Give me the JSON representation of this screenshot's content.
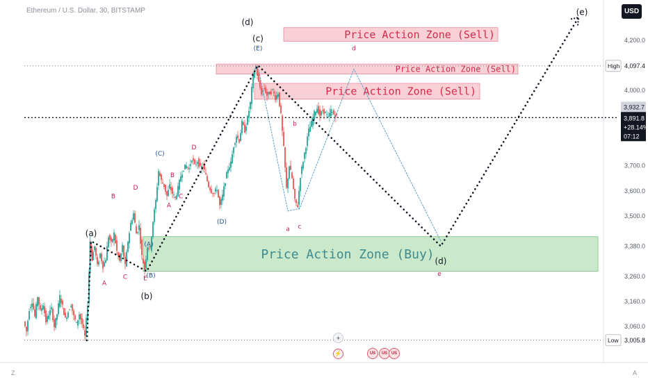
{
  "header": {
    "title": "Ethereum / U.S. Dollar, 30, BITSTAMP",
    "currency_button": "USD"
  },
  "footer": {
    "left_label": "Z",
    "right_label": "A"
  },
  "colors": {
    "bull": "#26a69a",
    "bear": "#ef5350",
    "sell_zone": "#f7bcc4",
    "buy_zone": "#a6d9a6",
    "axis_text": "#555b66",
    "wave_label_dark": "#131722",
    "wave_label_red": "#c2185b",
    "wave_label_blue": "#1e4e8c"
  },
  "chart_data": {
    "type": "candlestick",
    "ylim": [
      2950,
      4310
    ],
    "y_ticks": [
      "4,200.0",
      "4,000.0",
      "3,700.0",
      "3,600.0",
      "3,500.0",
      "3,380.0",
      "3,260.0",
      "3,160.0",
      "3,060.0"
    ],
    "y_tick_values": [
      4200,
      4000,
      3700,
      3600,
      3500,
      3380,
      3260,
      3160,
      3060
    ],
    "high": {
      "label": "High",
      "value": "4,097.4",
      "price": 4097.4
    },
    "low": {
      "label": "Low",
      "value": "3,005.8",
      "price": 3005.8
    },
    "last_price": {
      "value": "3,932.7",
      "price": 3932.7
    },
    "current_price": {
      "value": "3,891.8",
      "change": "+28.14%",
      "countdown": "07:12",
      "price": 3891.8
    },
    "zones": [
      {
        "label": "Price Action Zone (Sell)",
        "top": 4250,
        "bottom": 4195
      },
      {
        "label": "Price Action Zone (Sell)",
        "top": 4105,
        "bottom": 4065
      },
      {
        "label": "Price Action Zone (Sell)",
        "top": 4028,
        "bottom": 3965
      },
      {
        "label": "Price Action Zone (Buy)",
        "top": 3418,
        "bottom": 3280
      }
    ],
    "wave_labels": [
      {
        "text": "(d)",
        "x": 356,
        "price": 4260,
        "color": "dark"
      },
      {
        "text": "(c)",
        "x": 371,
        "price": 4195,
        "color": "dark"
      },
      {
        "text": "(E)",
        "x": 371,
        "price": 4160,
        "color": "blue"
      },
      {
        "text": "(e)",
        "x": 837,
        "price": 4300,
        "color": "dark"
      },
      {
        "text": "d",
        "x": 509,
        "price": 4160,
        "color": "red"
      },
      {
        "text": "(a)",
        "x": 131,
        "price": 3420,
        "color": "dark"
      },
      {
        "text": "(b)",
        "x": 211,
        "price": 3170,
        "color": "dark"
      },
      {
        "text": "(B)",
        "x": 217,
        "price": 3255,
        "color": "blue"
      },
      {
        "text": "E",
        "x": 209,
        "price": 3245,
        "color": "red"
      },
      {
        "text": "A",
        "x": 150,
        "price": 3225,
        "color": "red"
      },
      {
        "text": "B",
        "x": 163,
        "price": 3570,
        "color": "red"
      },
      {
        "text": "C",
        "x": 180,
        "price": 3250,
        "color": "red"
      },
      {
        "text": "D",
        "x": 195,
        "price": 3605,
        "color": "red"
      },
      {
        "text": "(A)",
        "x": 214,
        "price": 3380,
        "color": "blue"
      },
      {
        "text": "(C)",
        "x": 230,
        "price": 3740,
        "color": "blue"
      },
      {
        "text": "D",
        "x": 279,
        "price": 3765,
        "color": "red"
      },
      {
        "text": "A",
        "x": 243,
        "price": 3535,
        "color": "red"
      },
      {
        "text": "B",
        "x": 248,
        "price": 3655,
        "color": "red"
      },
      {
        "text": "C",
        "x": 260,
        "price": 3570,
        "color": "red"
      },
      {
        "text": "(D)",
        "x": 319,
        "price": 3470,
        "color": "blue"
      },
      {
        "text": "b",
        "x": 424,
        "price": 3860,
        "color": "red"
      },
      {
        "text": "a",
        "x": 414,
        "price": 3440,
        "color": "red"
      },
      {
        "text": "c",
        "x": 431,
        "price": 3450,
        "color": "red"
      },
      {
        "text": "(d)",
        "x": 634,
        "price": 3310,
        "color": "dark"
      },
      {
        "text": "e",
        "x": 632,
        "price": 3262,
        "color": "red"
      }
    ],
    "projections": [
      {
        "style": "dotted-black",
        "points": [
          [
            125,
            3005
          ],
          [
            131,
            3400
          ],
          [
            211,
            3280
          ],
          [
            371,
            4100
          ],
          [
            634,
            3380
          ],
          [
            832,
            4290
          ]
        ]
      },
      {
        "style": "dotted-blue",
        "points": [
          [
            371,
            4095
          ],
          [
            414,
            3520
          ],
          [
            431,
            3530
          ],
          [
            509,
            4085
          ],
          [
            634,
            3400
          ]
        ]
      }
    ],
    "price_path": [
      [
        36,
        3080
      ],
      [
        40,
        3040
      ],
      [
        44,
        3130
      ],
      [
        48,
        3160
      ],
      [
        52,
        3100
      ],
      [
        56,
        3180
      ],
      [
        60,
        3120
      ],
      [
        64,
        3150
      ],
      [
        68,
        3080
      ],
      [
        72,
        3110
      ],
      [
        76,
        3130
      ],
      [
        80,
        3060
      ],
      [
        84,
        3110
      ],
      [
        88,
        3180
      ],
      [
        92,
        3140
      ],
      [
        96,
        3090
      ],
      [
        100,
        3120
      ],
      [
        104,
        3150
      ],
      [
        108,
        3100
      ],
      [
        112,
        3070
      ],
      [
        116,
        3110
      ],
      [
        120,
        3070
      ],
      [
        124,
        3020
      ],
      [
        128,
        3150
      ],
      [
        131,
        3400
      ],
      [
        134,
        3330
      ],
      [
        138,
        3380
      ],
      [
        142,
        3300
      ],
      [
        146,
        3350
      ],
      [
        150,
        3300
      ],
      [
        154,
        3330
      ],
      [
        158,
        3420
      ],
      [
        162,
        3390
      ],
      [
        166,
        3430
      ],
      [
        170,
        3360
      ],
      [
        174,
        3320
      ],
      [
        178,
        3380
      ],
      [
        182,
        3300
      ],
      [
        186,
        3400
      ],
      [
        190,
        3470
      ],
      [
        194,
        3510
      ],
      [
        198,
        3430
      ],
      [
        202,
        3460
      ],
      [
        206,
        3340
      ],
      [
        210,
        3290
      ],
      [
        214,
        3380
      ],
      [
        218,
        3370
      ],
      [
        222,
        3480
      ],
      [
        226,
        3560
      ],
      [
        230,
        3680
      ],
      [
        234,
        3640
      ],
      [
        238,
        3620
      ],
      [
        242,
        3580
      ],
      [
        246,
        3620
      ],
      [
        250,
        3590
      ],
      [
        254,
        3570
      ],
      [
        258,
        3610
      ],
      [
        262,
        3660
      ],
      [
        266,
        3690
      ],
      [
        270,
        3700
      ],
      [
        274,
        3690
      ],
      [
        278,
        3730
      ],
      [
        282,
        3700
      ],
      [
        286,
        3720
      ],
      [
        290,
        3690
      ],
      [
        294,
        3700
      ],
      [
        298,
        3660
      ],
      [
        302,
        3620
      ],
      [
        306,
        3600
      ],
      [
        310,
        3590
      ],
      [
        314,
        3610
      ],
      [
        318,
        3540
      ],
      [
        322,
        3580
      ],
      [
        326,
        3640
      ],
      [
        330,
        3690
      ],
      [
        334,
        3710
      ],
      [
        338,
        3780
      ],
      [
        342,
        3820
      ],
      [
        346,
        3800
      ],
      [
        350,
        3870
      ],
      [
        354,
        3840
      ],
      [
        358,
        3890
      ],
      [
        362,
        3950
      ],
      [
        366,
        4060
      ],
      [
        370,
        4095
      ],
      [
        374,
        4030
      ],
      [
        378,
        3990
      ],
      [
        382,
        4010
      ],
      [
        386,
        3980
      ],
      [
        390,
        3990
      ],
      [
        394,
        4000
      ],
      [
        398,
        3970
      ],
      [
        402,
        3990
      ],
      [
        406,
        3900
      ],
      [
        410,
        3770
      ],
      [
        414,
        3610
      ],
      [
        418,
        3700
      ],
      [
        422,
        3650
      ],
      [
        426,
        3560
      ],
      [
        430,
        3540
      ],
      [
        434,
        3660
      ],
      [
        438,
        3720
      ],
      [
        442,
        3780
      ],
      [
        446,
        3840
      ],
      [
        450,
        3870
      ],
      [
        454,
        3910
      ],
      [
        458,
        3930
      ],
      [
        462,
        3900
      ],
      [
        466,
        3920
      ],
      [
        470,
        3910
      ],
      [
        474,
        3890
      ],
      [
        478,
        3920
      ],
      [
        482,
        3905
      ],
      [
        486,
        3895
      ]
    ]
  }
}
